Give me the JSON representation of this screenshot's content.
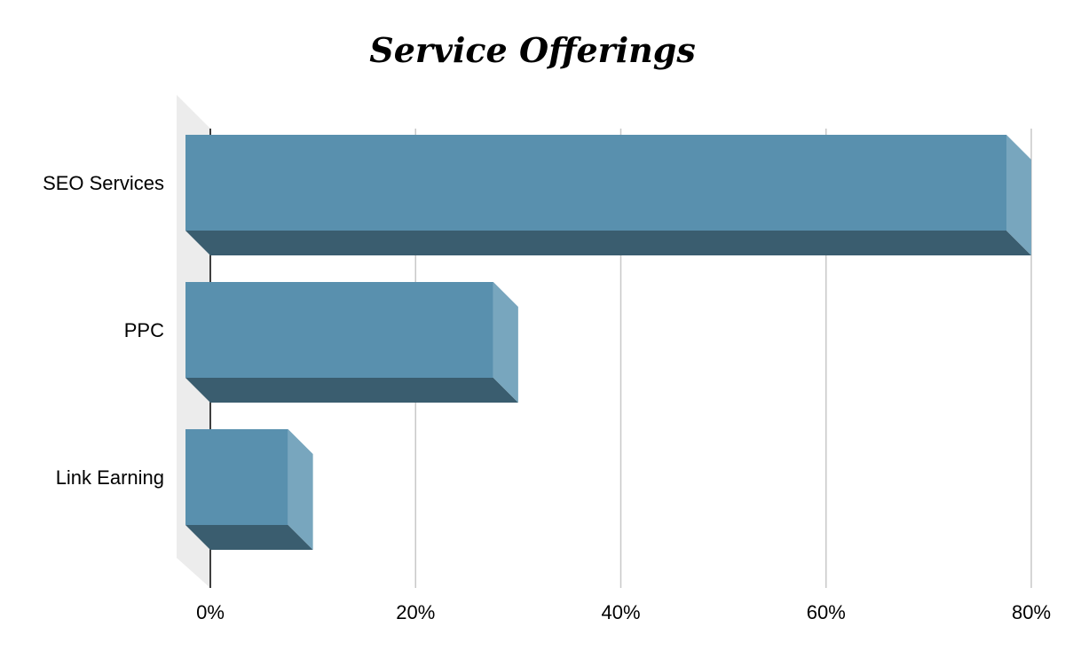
{
  "chart_data": {
    "type": "bar",
    "orientation": "horizontal",
    "title": "Service Offerings",
    "xlabel": "",
    "ylabel": "",
    "categories": [
      "SEO Services",
      "PPC",
      "Link Earning"
    ],
    "values": [
      80,
      30,
      10
    ],
    "value_unit": "%",
    "xlim": [
      0,
      80
    ],
    "x_ticks": [
      "0%",
      "20%",
      "40%",
      "60%",
      "80%"
    ],
    "x_tick_values": [
      0,
      20,
      40,
      60,
      80
    ],
    "grid": true,
    "legend": "none",
    "style": "3d",
    "colors": {
      "bar_front": "#5990ae",
      "bar_side": "#78a6be",
      "bar_bottom": "#3a5d6f",
      "wall": "#ececec",
      "gridline": "#c8c8c8",
      "axis": "#000000"
    }
  }
}
